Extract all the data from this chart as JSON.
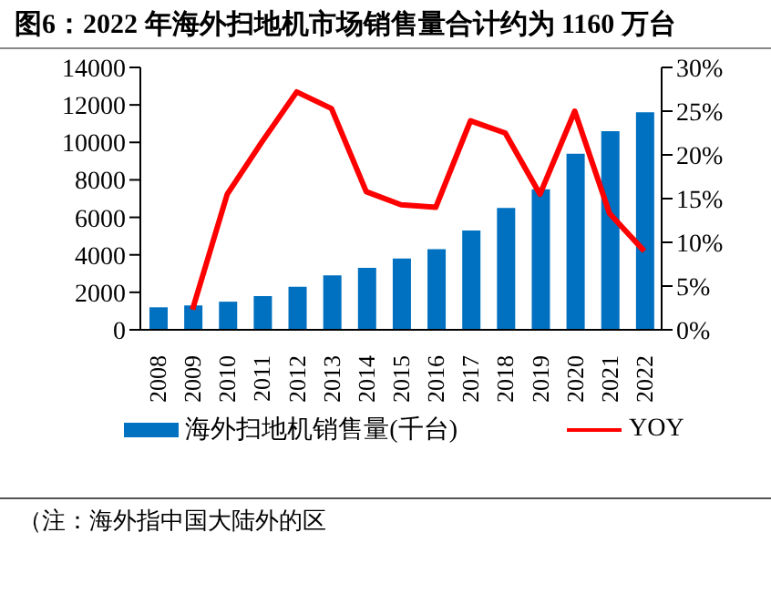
{
  "chart_data": {
    "type": "bar",
    "title": "图6：2022 年海外扫地机市场销售量合计约为 1160 万台",
    "categories": [
      "2008",
      "2009",
      "2010",
      "2011",
      "2012",
      "2013",
      "2014",
      "2015",
      "2016",
      "2017",
      "2018",
      "2019",
      "2020",
      "2021",
      "2022"
    ],
    "series": [
      {
        "name": "海外扫地机销售量(千台)",
        "color": "#0070c0",
        "values": [
          1200,
          1300,
          1500,
          1800,
          2300,
          2900,
          3300,
          3800,
          4300,
          5300,
          6500,
          7500,
          9400,
          10600,
          11600
        ]
      },
      {
        "name": "YOY",
        "type": "line",
        "axis": "y2",
        "color": "#ff0000",
        "values": [
          null,
          2.3,
          15.5,
          21.5,
          27.2,
          25.3,
          15.8,
          14.3,
          14.0,
          23.9,
          22.5,
          15.5,
          25.0,
          13.3,
          9.0
        ]
      }
    ],
    "ylim": [
      0,
      14000
    ],
    "yticks": [
      0,
      2000,
      4000,
      6000,
      8000,
      10000,
      12000,
      14000
    ],
    "y2lim": [
      0,
      30
    ],
    "y2ticks": [
      {
        "value": 0,
        "label": "0%"
      },
      {
        "value": 5,
        "label": "5%"
      },
      {
        "value": 10,
        "label": "10%"
      },
      {
        "value": 15,
        "label": "15%"
      },
      {
        "value": 20,
        "label": "20%"
      },
      {
        "value": 25,
        "label": "25%"
      },
      {
        "value": 30,
        "label": "30%"
      }
    ],
    "legend": "bottom",
    "grid": false,
    "marker": "none",
    "annotations": [
      "（注：海外指中国大陆外的区"
    ]
  }
}
